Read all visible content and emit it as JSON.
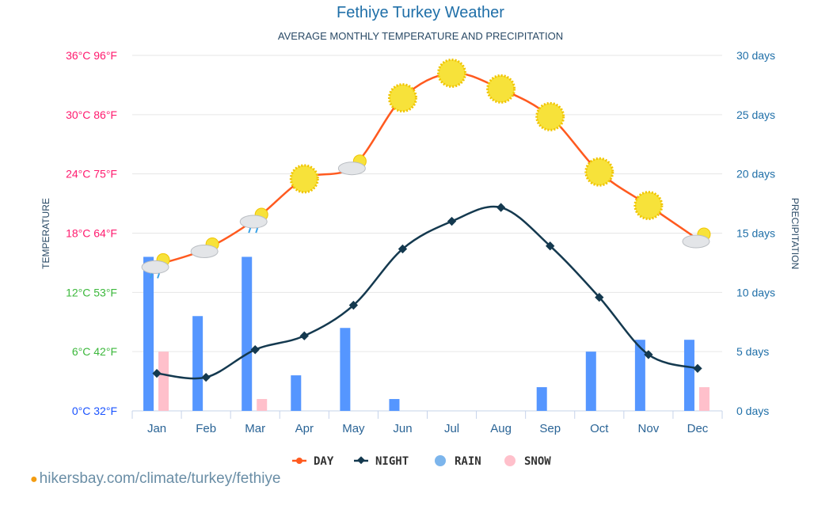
{
  "chart_data": {
    "type": "bar+line",
    "title": "Fethiye Turkey Weather",
    "subtitle": "AVERAGE MONTHLY TEMPERATURE AND PRECIPITATION",
    "ylabel_left": "TEMPERATURE",
    "ylabel_right": "PRECIPITATION",
    "categories": [
      "Jan",
      "Feb",
      "Mar",
      "Apr",
      "May",
      "Jun",
      "Jul",
      "Aug",
      "Sep",
      "Oct",
      "Nov",
      "Dec"
    ],
    "left_axis": {
      "ylim": [
        0,
        36
      ],
      "ticks": [
        "0°C 32°F",
        "6°C 42°F",
        "12°C 53°F",
        "18°C 64°F",
        "24°C 75°F",
        "30°C 86°F",
        "36°C 96°F"
      ],
      "tick_colors": [
        "#1a53ff",
        "#3cb83c",
        "#3cb83c",
        "#ff1a6e",
        "#ff1a6e",
        "#ff1a6e",
        "#ff1a6e"
      ]
    },
    "right_axis": {
      "ylim": [
        0,
        30
      ],
      "ticks": [
        "0 days",
        "5 days",
        "10 days",
        "15 days",
        "20 days",
        "25 days",
        "30 days"
      ]
    },
    "grid": true,
    "legend_position": "bottom",
    "series": [
      {
        "name": "DAY",
        "type": "line",
        "unit": "°C",
        "color": "#ff5a1f",
        "values": [
          14.8,
          16.4,
          19.4,
          23.5,
          24.8,
          31.7,
          34.2,
          32.6,
          29.8,
          24.2,
          20.8,
          17.4
        ],
        "icons": [
          "sun-cloud-rain",
          "sun-cloud",
          "sun-cloud-rain",
          "sun",
          "sun-cloud",
          "sun",
          "sun",
          "sun",
          "sun",
          "sun",
          "sun",
          "sun-cloud"
        ]
      },
      {
        "name": "NIGHT",
        "type": "line",
        "unit": "°C",
        "color": "#14394f",
        "values": [
          3.8,
          3.4,
          6.2,
          7.6,
          10.7,
          16.4,
          19.2,
          20.6,
          16.7,
          11.5,
          5.7,
          4.3
        ]
      },
      {
        "name": "RAIN",
        "type": "bar",
        "unit": "days",
        "color": "#5596ff",
        "values": [
          13,
          8,
          13,
          3,
          7,
          1,
          0,
          0,
          2,
          5,
          6,
          6
        ]
      },
      {
        "name": "SNOW",
        "type": "bar",
        "unit": "days",
        "color": "#ffc0cb",
        "values": [
          5,
          0,
          1,
          0,
          0,
          0,
          0,
          0,
          0,
          0,
          0,
          2
        ]
      }
    ]
  },
  "source": "hikersbay.com/climate/turkey/fethiye"
}
